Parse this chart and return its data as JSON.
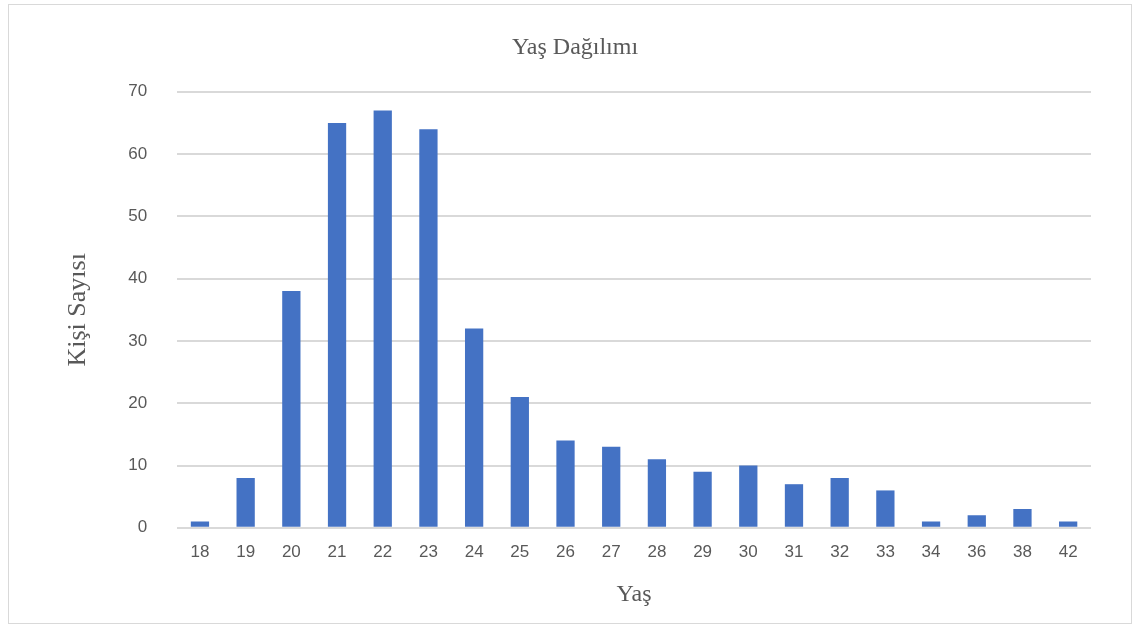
{
  "chart_data": {
    "type": "bar",
    "title": "Yaş Dağılımı",
    "xlabel": "Yaş",
    "ylabel": "Kişi Sayısı",
    "categories": [
      "18",
      "19",
      "20",
      "21",
      "22",
      "23",
      "24",
      "25",
      "26",
      "27",
      "28",
      "29",
      "30",
      "31",
      "32",
      "33",
      "34",
      "36",
      "38",
      "42"
    ],
    "values": [
      1,
      8,
      38,
      65,
      67,
      64,
      32,
      21,
      14,
      13,
      11,
      9,
      10,
      7,
      8,
      6,
      1,
      2,
      3,
      1
    ],
    "color": "#4472c4",
    "ylim": [
      0,
      70
    ],
    "yticks": [
      0,
      10,
      20,
      30,
      40,
      50,
      60,
      70
    ],
    "grid": "y"
  }
}
